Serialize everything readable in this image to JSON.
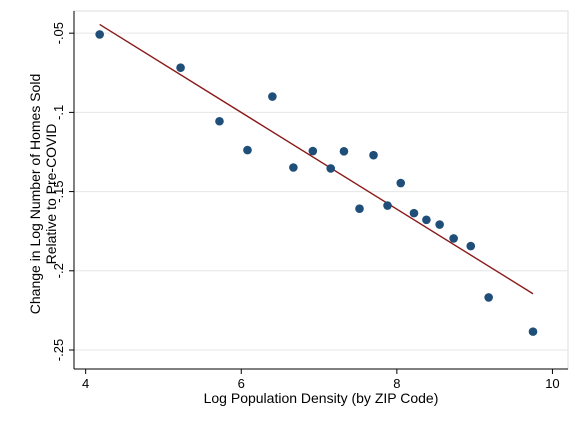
{
  "chart_data": {
    "type": "scatter",
    "title": "",
    "xlabel": "Log Population Density (by ZIP Code)",
    "ylabel_lines": [
      "Change in Log Number of Homes Sold",
      "Relative to Pre-COVID"
    ],
    "xlim": [
      3.85,
      10.2
    ],
    "ylim": [
      -0.262,
      -0.036
    ],
    "x_ticks": [
      4,
      6,
      8,
      10
    ],
    "x_tick_labels": [
      "4",
      "6",
      "8",
      "10"
    ],
    "y_ticks": [
      -0.05,
      -0.1,
      -0.15,
      -0.2,
      -0.25
    ],
    "y_tick_labels": [
      "-.05",
      "-.1",
      "-.15",
      "-.2",
      "-.25"
    ],
    "grid": "horizontal",
    "legend": "none",
    "marker_color": "#1f4e79",
    "line_color": "#8b1a1a",
    "series": [
      {
        "type": "scatter",
        "points": [
          [
            4.18,
            -0.0508
          ],
          [
            5.22,
            -0.0718
          ],
          [
            5.72,
            -0.1056
          ],
          [
            6.08,
            -0.1238
          ],
          [
            6.4,
            -0.09
          ],
          [
            6.67,
            -0.1348
          ],
          [
            6.92,
            -0.1244
          ],
          [
            7.15,
            -0.1354
          ],
          [
            7.32,
            -0.1246
          ],
          [
            7.52,
            -0.1608
          ],
          [
            7.7,
            -0.127
          ],
          [
            7.88,
            -0.1588
          ],
          [
            8.05,
            -0.1446
          ],
          [
            8.22,
            -0.1636
          ],
          [
            8.38,
            -0.1678
          ],
          [
            8.55,
            -0.1708
          ],
          [
            8.73,
            -0.1796
          ],
          [
            8.95,
            -0.1844
          ],
          [
            9.18,
            -0.2168
          ],
          [
            9.75,
            -0.2384
          ]
        ]
      },
      {
        "type": "line",
        "points": [
          [
            4.18,
            -0.0445
          ],
          [
            9.75,
            -0.2145
          ]
        ]
      }
    ]
  }
}
